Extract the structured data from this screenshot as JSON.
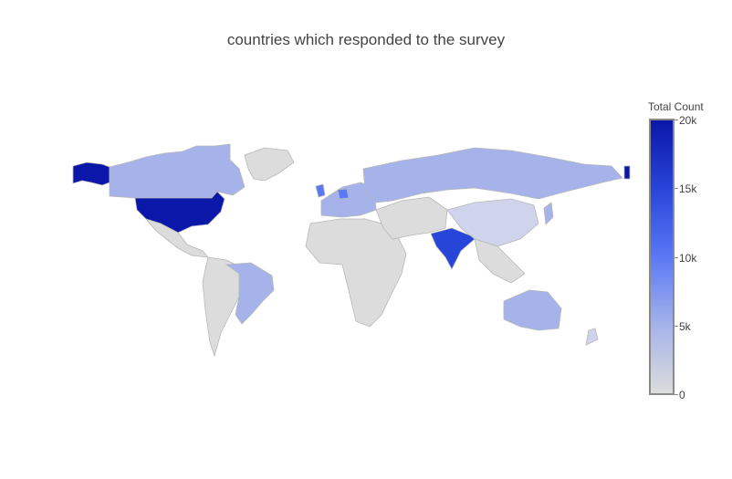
{
  "chart_data": {
    "type": "choropleth",
    "title": "countries which responded to the survey",
    "colorbar": {
      "title": "Total Count",
      "range": [
        0,
        20000
      ],
      "ticks": [
        "0",
        "5k",
        "10k",
        "15k",
        "20k"
      ],
      "tick_values": [
        0,
        5000,
        10000,
        15000,
        20000
      ],
      "colorscale": [
        "#dcdcdc",
        "#a5b3ea",
        "#5a78f5",
        "#2845d9",
        "#0b17a8"
      ]
    },
    "projection": "equirectangular",
    "missing_country_color": "#dcdcdc",
    "border_color": "#b8b8b8"
  }
}
